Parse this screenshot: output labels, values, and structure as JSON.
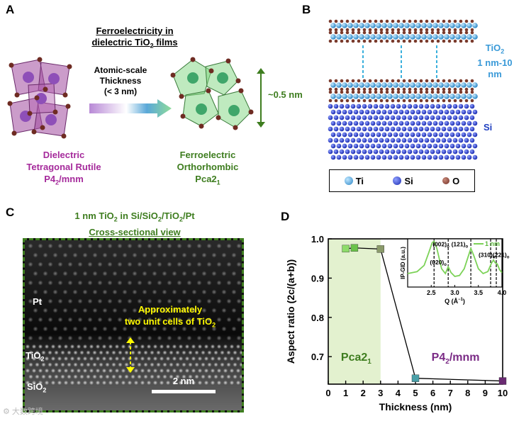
{
  "panels": {
    "a": "A",
    "b": "B",
    "c": "C",
    "d": "D"
  },
  "panel_a": {
    "title_line1": "Ferroelectricity in",
    "title_line2": "dielectric TiO",
    "title_sub": "2",
    "title_tail": " films",
    "arrow_line1": "Atomic-scale",
    "arrow_line2": "Thickness",
    "arrow_line3": "(< 3 nm)",
    "height_label": "~0.5 nm",
    "left_line1": "Dielectric",
    "left_line2": "Tetragonal Rutile",
    "left_line3_a": "P4",
    "left_line3_sub": "2",
    "left_line3_b": "/mnm",
    "right_line1": "Ferroelectric",
    "right_line2": "Orthorhombic",
    "right_line3_a": "Pca2",
    "right_line3_sub": "1"
  },
  "panel_b": {
    "label_line1_a": "TiO",
    "label_line1_sub": "2",
    "label_line2": "1 nm-10",
    "label_line3": "nm",
    "si_label": "Si",
    "legend": [
      "Ti",
      "Si",
      "O"
    ]
  },
  "panel_c": {
    "title_a": "1 nm TiO",
    "title_sub": "2",
    "title_b": " in Si/SiO",
    "title_sub2": "2",
    "title_c": "/TiO",
    "title_sub3": "2",
    "title_d": "/Pt",
    "subtitle": "Cross-sectional view",
    "pt": "Pt",
    "tio2_a": "TiO",
    "tio2_sub": "2",
    "sio2_a": "SiO",
    "sio2_sub": "2",
    "annotation_line1": "Approximately",
    "annotation_line2": "two unit cells of TiO",
    "annotation_sub": "2",
    "scale": "2 nm",
    "watermark": "大数跨境"
  },
  "chart_data": [
    {
      "type": "scatter",
      "title": "",
      "xlabel": "Thickness (nm)",
      "ylabel": "Aspect ratio (2c/(a+b))",
      "xlim": [
        0,
        10
      ],
      "ylim": [
        0.63,
        1.0
      ],
      "xticks": [
        "0",
        "1",
        "2",
        "3",
        "4",
        "5",
        "6",
        "7",
        "8",
        "9",
        "10"
      ],
      "yticks": [
        "0.7",
        "0.8",
        "0.9",
        "1.0"
      ],
      "series": [
        {
          "name": "aspect ratio",
          "x": [
            1.0,
            1.5,
            3.0,
            5.0,
            10.0
          ],
          "y": [
            0.975,
            0.977,
            0.974,
            0.645,
            0.638
          ]
        }
      ],
      "regions": [
        {
          "label_a": "Pca2",
          "label_sub": "1",
          "from": 0,
          "to": 3
        },
        {
          "label_a": "P4",
          "label_sub": "2",
          "label_b": "/mnm"
        }
      ]
    },
    {
      "type": "line",
      "title": "",
      "xlabel_a": "Q (Å",
      "xlabel_sup": "−1",
      "xlabel_b": ")",
      "ylabel": "IP-GID (a.u.)",
      "xlim": [
        2.0,
        4.0
      ],
      "xticks": [
        "2.5",
        "3.0",
        "3.5",
        "4.0"
      ],
      "legend": "1 nm",
      "series": [
        {
          "name": "1 nm",
          "x": [
            2.0,
            2.2,
            2.35,
            2.45,
            2.52,
            2.56,
            2.62,
            2.72,
            2.8,
            2.86,
            2.92,
            3.0,
            3.1,
            3.2,
            3.28,
            3.34,
            3.4,
            3.5,
            3.6,
            3.7,
            3.78,
            3.82,
            3.86,
            3.9,
            3.95,
            4.0
          ],
          "y": [
            0.28,
            0.32,
            0.45,
            0.72,
            0.92,
            0.95,
            0.8,
            0.38,
            0.28,
            0.42,
            0.3,
            0.22,
            0.24,
            0.38,
            0.62,
            0.8,
            0.66,
            0.38,
            0.28,
            0.32,
            0.5,
            0.56,
            0.5,
            0.48,
            0.36,
            0.3
          ]
        }
      ],
      "peaks": [
        {
          "q": 2.56,
          "label_a": "(002)",
          "label_sub": "o"
        },
        {
          "q": 2.86,
          "label_a": "(020)",
          "label_sub": "o"
        },
        {
          "q": 3.34,
          "label_a": "(121)",
          "label_sub": "o"
        },
        {
          "q": 3.76,
          "label_a": "(310)",
          "label_sub": "o"
        },
        {
          "q": 3.88,
          "label_a": "(221)",
          "label_sub": "o"
        }
      ]
    }
  ],
  "colors": {
    "green": "#3e7d1f",
    "purple": "#a52a9b",
    "cyan": "#3a9ad8",
    "yellow": "#fffa00",
    "shade": "#e3f1cf",
    "line_green": "#7cd257"
  }
}
